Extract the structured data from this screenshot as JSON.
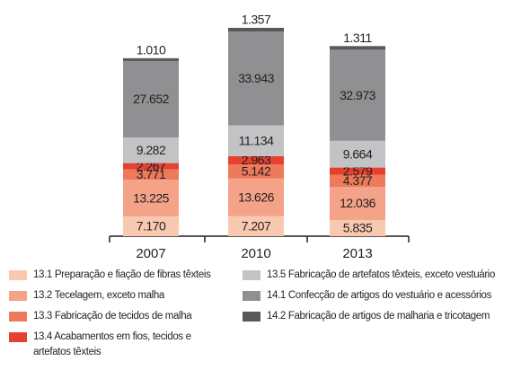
{
  "chart_data": {
    "type": "stacked_bar",
    "categories": [
      "2007",
      "2010",
      "2013"
    ],
    "series": [
      {
        "name": "13.1 Preparação e fiação de fibras têxteis",
        "color": "#f9c8b0",
        "values": [
          7170,
          7207,
          5835
        ],
        "value_labels": [
          "7.170",
          "7.207",
          "5.835"
        ]
      },
      {
        "name": "13.2 Tecelagem, exceto malha",
        "color": "#f4a388",
        "values": [
          13225,
          13626,
          12036
        ],
        "value_labels": [
          "13.225",
          "13.626",
          "12.036"
        ]
      },
      {
        "name": "13.3 Fabricação de tecidos de malha",
        "color": "#ee7a5c",
        "values": [
          3771,
          5142,
          4377
        ],
        "value_labels": [
          "3.771",
          "5.142",
          "4.377"
        ]
      },
      {
        "name": "13.4 Acabamentos em fios, tecidos e artefatos têxteis",
        "color": "#e4412f",
        "values": [
          2267,
          2963,
          2579
        ],
        "value_labels": [
          "2.267",
          "2.963",
          "2.579"
        ]
      },
      {
        "name": "13.5 Fabricação de artefatos têxteis, exceto vestuário",
        "color": "#c3c3c6",
        "values": [
          9282,
          11134,
          9664
        ],
        "value_labels": [
          "9.282",
          "11.134",
          "9.664"
        ]
      },
      {
        "name": "14.1 Confecção de artigos do vestuário e acessórios",
        "color": "#909093",
        "values": [
          27652,
          33943,
          32973
        ],
        "value_labels": [
          "27.652",
          "33.943",
          "32.973"
        ]
      },
      {
        "name": "14.2 Fabricação de artigos de malharia e tricotagem",
        "color": "#58585b",
        "values": [
          1010,
          1357,
          1311
        ],
        "value_labels": [
          "1.010",
          "1.357",
          "1.311"
        ]
      }
    ]
  }
}
